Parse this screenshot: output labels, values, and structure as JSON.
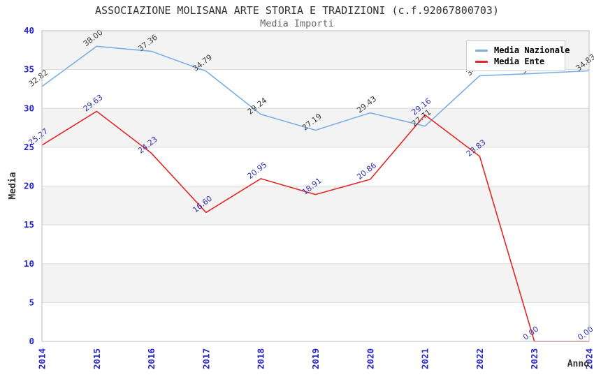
{
  "chart_data": {
    "type": "line",
    "title": "ASSOCIAZIONE MOLISANA ARTE STORIA E TRADIZIONI (c.f.92067800703)",
    "subtitle": "Media Importi",
    "xlabel": "Anno",
    "ylabel": "Media",
    "ylim": [
      0,
      40
    ],
    "ytick_interval": 5,
    "ytick_labels": [
      "0",
      "5",
      "10",
      "15",
      "20",
      "25",
      "30",
      "35",
      "40"
    ],
    "categories": [
      "2014",
      "2015",
      "2016",
      "2017",
      "2018",
      "2019",
      "2020",
      "2021",
      "2022",
      "2023",
      "2024"
    ],
    "grid": "alternating-bands",
    "legend_position": "top-right",
    "colors": {
      "band_gray": "#f3f3f3",
      "gridline": "#dddddd",
      "plot_border": "#c6c6c6",
      "tick_label_blue": "#2424cc",
      "axis_title_color": "#333333",
      "title_color": "#333333",
      "subtitle_color": "#666666"
    },
    "series": [
      {
        "name": "Media Nazionale",
        "color": "#7daee3",
        "label_color": "#3c3c3c",
        "values": [
          32.82,
          38.0,
          37.36,
          34.79,
          29.24,
          27.19,
          29.43,
          27.71,
          34.2,
          34.5,
          34.83
        ],
        "point_labels": [
          "32.82",
          "38.00",
          "37.36",
          "34.79",
          "29.24",
          "27.19",
          "29.43",
          "27.71",
          "34.20",
          "34.50",
          "34.83"
        ],
        "labels_hidden_behind_legend": [
          "2022",
          "2023"
        ]
      },
      {
        "name": "Media Ente",
        "color": "#e32726",
        "label_color": "#3232b0",
        "values": [
          25.27,
          29.63,
          24.23,
          16.6,
          20.95,
          18.91,
          20.86,
          29.16,
          23.83,
          0.0,
          0.0
        ],
        "point_labels": [
          "25.27",
          "29.63",
          "24.23",
          "16.60",
          "20.95",
          "18.91",
          "20.86",
          "29.16",
          "23.83",
          "0.00",
          "0.00"
        ],
        "labels_hidden_behind_legend": []
      }
    ]
  }
}
